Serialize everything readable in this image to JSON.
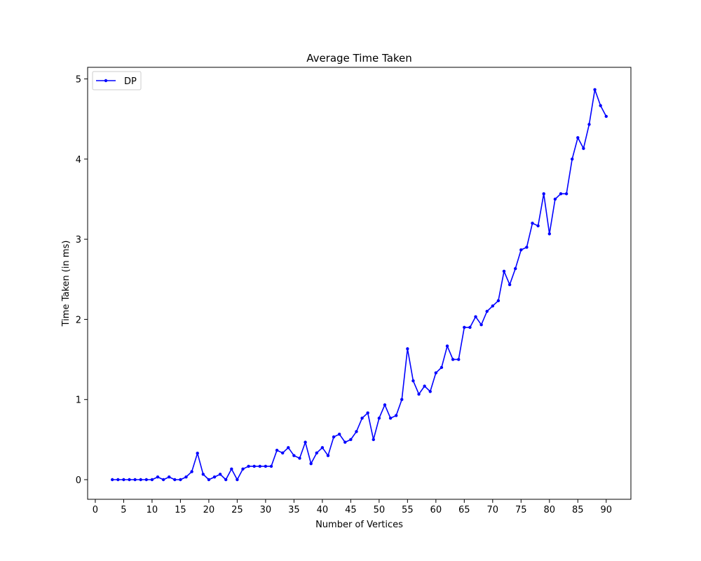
{
  "chart_data": {
    "type": "line",
    "title": "Average Time Taken",
    "xlabel": "Number of Vertices",
    "ylabel": "Time Taken (in ms)",
    "xlim": [
      -1.35,
      94.35
    ],
    "ylim": [
      -0.245,
      5.145
    ],
    "xticks": [
      0,
      5,
      10,
      15,
      20,
      25,
      30,
      35,
      40,
      45,
      50,
      55,
      60,
      65,
      70,
      75,
      80,
      85,
      90
    ],
    "yticks": [
      0,
      1,
      2,
      3,
      4,
      5
    ],
    "grid": false,
    "legend": {
      "location": "upper left"
    },
    "series": [
      {
        "name": "DP",
        "color": "#0000ff",
        "marker": "point",
        "x": [
          3,
          4,
          5,
          6,
          7,
          8,
          9,
          10,
          11,
          12,
          13,
          14,
          15,
          16,
          17,
          18,
          19,
          20,
          21,
          22,
          23,
          24,
          25,
          26,
          27,
          28,
          29,
          30,
          31,
          32,
          33,
          34,
          35,
          36,
          37,
          38,
          39,
          40,
          41,
          42,
          43,
          44,
          45,
          46,
          47,
          48,
          49,
          50,
          51,
          52,
          53,
          54,
          55,
          56,
          57,
          58,
          59,
          60,
          61,
          62,
          63,
          64,
          65,
          66,
          67,
          68,
          69,
          70,
          71,
          72,
          73,
          74,
          75,
          76,
          77,
          78,
          79,
          80,
          81,
          82,
          83,
          84,
          85,
          86,
          87,
          88,
          89,
          90
        ],
        "y": [
          0,
          0,
          0,
          0,
          0,
          0,
          0,
          0,
          0.033,
          0,
          0.033,
          0,
          0,
          0.033,
          0.1,
          0.33,
          0.067,
          0,
          0.033,
          0.067,
          0,
          0.133,
          0,
          0.133,
          0.167,
          0.167,
          0.167,
          0.167,
          0.167,
          0.367,
          0.333,
          0.4,
          0.3,
          0.267,
          0.467,
          0.2,
          0.333,
          0.4,
          0.3,
          0.533,
          0.567,
          0.467,
          0.5,
          0.6,
          0.767,
          0.833,
          0.5,
          0.767,
          0.933,
          0.767,
          0.8,
          1.0,
          1.633,
          1.233,
          1.067,
          1.167,
          1.1,
          1.333,
          1.4,
          1.667,
          1.5,
          1.5,
          1.9,
          1.9,
          2.033,
          1.933,
          2.1,
          2.167,
          2.233,
          2.6,
          2.433,
          2.633,
          2.867,
          2.9,
          3.2,
          3.167,
          3.567,
          3.067,
          3.5,
          3.567,
          3.567,
          4.0,
          4.267,
          4.133,
          4.433,
          4.867,
          4.667,
          4.533
        ]
      }
    ]
  }
}
